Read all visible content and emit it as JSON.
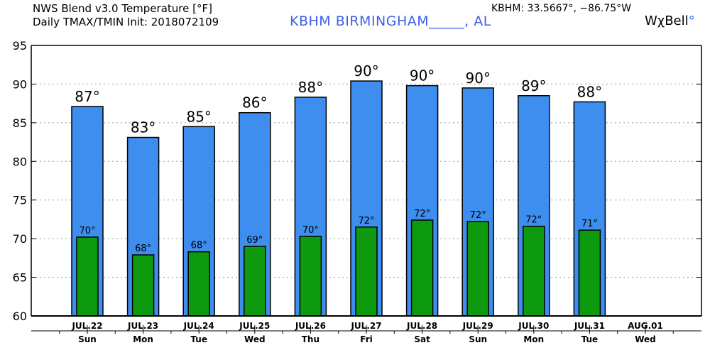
{
  "header": {
    "title_line1": "NWS Blend v3.0 Temperature [°F]",
    "title_line2": "Daily TMAX/TMIN Init: 2018072109",
    "station": "KBHM BIRMINGHAM_____, AL",
    "coords": "KBHM: 33.5667°, −86.75°W",
    "brand_text": "WχBell",
    "brand_dot": "°"
  },
  "chart_data": {
    "type": "bar",
    "title": "NWS Blend v3.0 Temperature [°F] Daily TMAX/TMIN",
    "ylim": [
      60,
      95
    ],
    "yticks": [
      60,
      65,
      70,
      75,
      80,
      85,
      90,
      95
    ],
    "grid": true,
    "categories": [
      "JUL.22",
      "JUL.23",
      "JUL.24",
      "JUL.25",
      "JUL.26",
      "JUL.27",
      "JUL.28",
      "JUL.29",
      "JUL.30",
      "JUL.31",
      "AUG.01"
    ],
    "days": [
      "Sun",
      "Mon",
      "Tue",
      "Wed",
      "Thu",
      "Fri",
      "Sat",
      "Sun",
      "Mon",
      "Tue",
      "Wed"
    ],
    "series": [
      {
        "name": "TMAX",
        "color": "#3e8ef0",
        "values": [
          87.1,
          83.1,
          84.5,
          86.3,
          88.3,
          90.4,
          89.8,
          89.5,
          88.5,
          87.7,
          null
        ],
        "labels": [
          "87°",
          "83°",
          "85°",
          "86°",
          "88°",
          "90°",
          "90°",
          "90°",
          "89°",
          "88°",
          ""
        ]
      },
      {
        "name": "TMIN",
        "color": "#0e9a0e",
        "values": [
          70.2,
          67.9,
          68.3,
          69.0,
          70.3,
          71.5,
          72.4,
          72.2,
          71.6,
          71.1,
          null
        ],
        "labels": [
          "70°",
          "68°",
          "68°",
          "69°",
          "70°",
          "72°",
          "72°",
          "72°",
          "72°",
          "71°",
          ""
        ]
      }
    ]
  }
}
